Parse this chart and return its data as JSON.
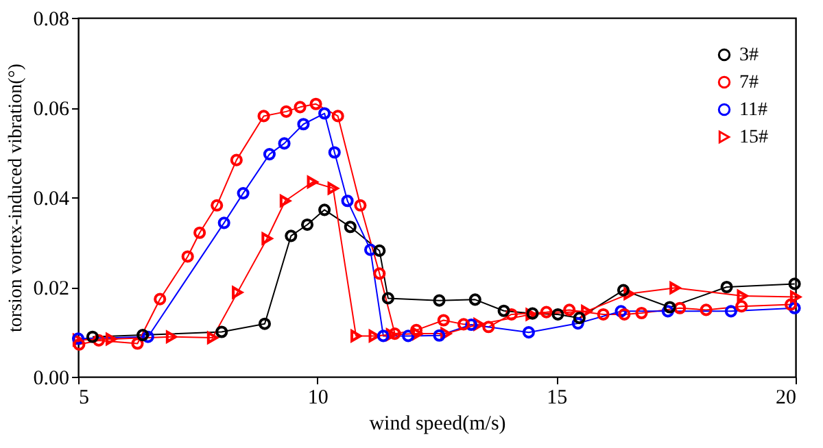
{
  "chart_data": {
    "type": "line",
    "xlabel": "wind speed(m/s)",
    "ylabel": "torsion vortex-induced vibration(°)",
    "xlim": [
      5,
      20
    ],
    "xticks": [
      5,
      10,
      15,
      20
    ],
    "ylim": [
      0,
      0.08
    ],
    "yticks": [
      {
        "value": 0,
        "label": "0.00"
      },
      {
        "value": 0.02,
        "label": "0.02"
      },
      {
        "value": 0.04,
        "label": "0.04"
      },
      {
        "value": 0.06,
        "label": "0.06"
      },
      {
        "value": 0.08,
        "label": "0.08"
      }
    ],
    "grid": false,
    "legend": "top right",
    "line_style": "solid",
    "series": [
      {
        "name": "3#",
        "color": "#000000",
        "marker": "circle",
        "x": [
          5.3,
          6.35,
          8.0,
          8.9,
          9.45,
          9.79,
          10.15,
          10.69,
          11.3,
          11.48,
          12.55,
          13.3,
          13.9,
          14.5,
          15.03,
          15.48,
          16.4,
          17.37,
          18.56,
          19.98
        ],
        "values": [
          0.0089,
          0.0093,
          0.01,
          0.0118,
          0.0314,
          0.0339,
          0.0372,
          0.0334,
          0.0281,
          0.0175,
          0.017,
          0.0172,
          0.0147,
          0.0141,
          0.0139,
          0.0131,
          0.0193,
          0.0155,
          0.02,
          0.0207
        ]
      },
      {
        "name": "7#",
        "color": "#ff0000",
        "marker": "circle",
        "x": [
          5.02,
          5.43,
          6.24,
          6.71,
          7.29,
          7.54,
          7.9,
          8.31,
          8.88,
          9.35,
          9.64,
          9.97,
          10.43,
          10.9,
          11.3,
          11.62,
          12.07,
          12.64,
          13.06,
          13.58,
          14.06,
          14.79,
          15.27,
          15.98,
          16.42,
          16.78,
          17.58,
          18.13,
          18.87,
          19.9
        ],
        "values": [
          0.0072,
          0.0081,
          0.0074,
          0.0173,
          0.0268,
          0.0321,
          0.0382,
          0.0483,
          0.0581,
          0.0591,
          0.0601,
          0.0608,
          0.0581,
          0.0382,
          0.023,
          0.0096,
          0.0104,
          0.0126,
          0.0117,
          0.0111,
          0.0139,
          0.0144,
          0.0149,
          0.0139,
          0.0139,
          0.0142,
          0.0153,
          0.0149,
          0.0157,
          0.0161
        ]
      },
      {
        "name": "11#",
        "color": "#0000ff",
        "marker": "circle",
        "x": [
          5.0,
          6.46,
          8.05,
          8.45,
          9.0,
          9.31,
          9.71,
          10.15,
          10.36,
          10.63,
          11.11,
          11.38,
          11.9,
          12.55,
          13.22,
          14.42,
          15.45,
          16.35,
          17.33,
          18.65,
          19.98
        ],
        "values": [
          0.0085,
          0.0089,
          0.0343,
          0.0409,
          0.0496,
          0.052,
          0.0563,
          0.0587,
          0.05,
          0.0392,
          0.0283,
          0.0091,
          0.0091,
          0.0092,
          0.0116,
          0.0099,
          0.0119,
          0.0146,
          0.0146,
          0.0146,
          0.0153
        ]
      },
      {
        "name": "15#",
        "color": "#ff0000",
        "marker": "triangle",
        "x": [
          5.0,
          5.69,
          6.95,
          7.81,
          8.33,
          8.95,
          9.33,
          9.9,
          10.33,
          10.81,
          11.19,
          11.55,
          12.1,
          12.69,
          13.38,
          14.47,
          15.63,
          16.52,
          17.48,
          18.89,
          20.0
        ],
        "values": [
          0.0082,
          0.0084,
          0.0089,
          0.0087,
          0.0188,
          0.0308,
          0.0392,
          0.0434,
          0.042,
          0.0091,
          0.0091,
          0.0094,
          0.0096,
          0.0096,
          0.0117,
          0.0139,
          0.0146,
          0.0185,
          0.0198,
          0.018,
          0.0178
        ]
      }
    ]
  }
}
